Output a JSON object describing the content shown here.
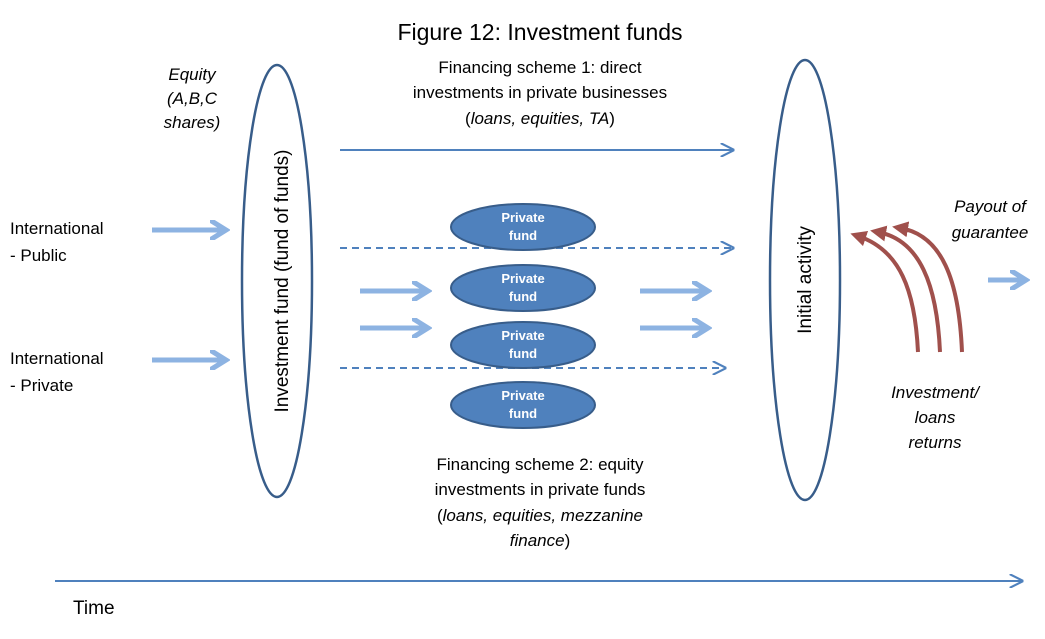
{
  "title": "Figure 12: Investment funds",
  "equity_label": [
    "Equity",
    "(A,B,C",
    "shares)"
  ],
  "scheme_1": {
    "lines": [
      "Financing scheme 1: direct",
      "investments in private businesses"
    ],
    "detail": [
      "(",
      "loans, equities, TA",
      ")"
    ]
  },
  "inputs": [
    {
      "lines": [
        "International",
        "- Public"
      ]
    },
    {
      "lines": [
        "International",
        "- Private"
      ]
    }
  ],
  "fund_of_funds": "Investment fund (fund of funds)",
  "private_funds": [
    {
      "lines": [
        "Private",
        "fund"
      ]
    },
    {
      "lines": [
        "Private",
        "fund"
      ]
    },
    {
      "lines": [
        "Private",
        "fund"
      ]
    },
    {
      "lines": [
        "Private",
        "fund"
      ]
    }
  ],
  "initial_activity": "Initial activity",
  "payout_label": [
    "Payout of",
    "guarantee"
  ],
  "returns_label": [
    "Investment/",
    "loans",
    "returns"
  ],
  "scheme_2": {
    "lines": [
      "Financing scheme 2: equity",
      "investments in private funds"
    ],
    "detail_1": [
      "(",
      "loans, equities, mezzanine"
    ],
    "detail_2": [
      "finance",
      ")"
    ]
  },
  "time_label": "Time"
}
